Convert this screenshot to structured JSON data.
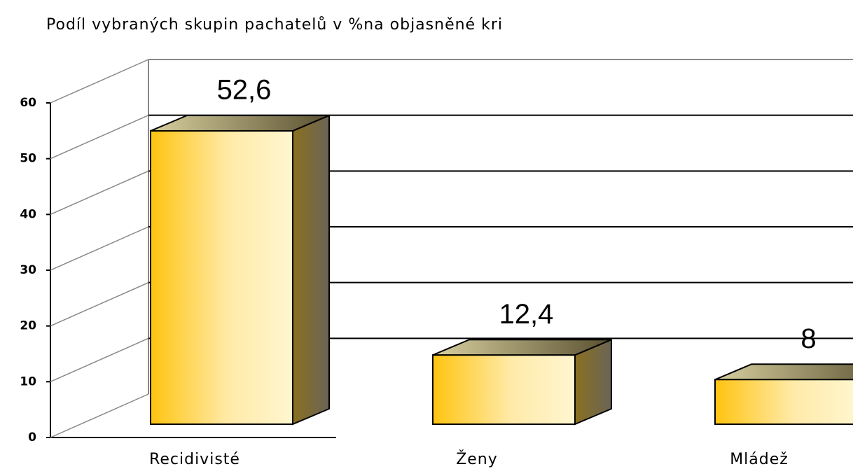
{
  "chart_data": {
    "type": "bar3d",
    "title": "Podíl vybraných skupin pachatelů v %na objasněné kri",
    "categories": [
      "Recidivisté",
      "Ženy",
      "Mládež"
    ],
    "values": [
      52.6,
      12.4,
      8
    ],
    "value_labels": [
      "52,6",
      "12,4",
      "8"
    ],
    "ylim": [
      0,
      60
    ],
    "yticks": [
      0,
      10,
      20,
      30,
      40,
      50,
      60
    ],
    "grid": true,
    "color": "#ffc820"
  }
}
